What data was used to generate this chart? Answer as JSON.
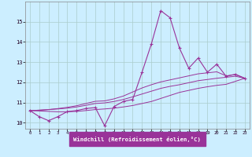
{
  "xlabel": "Windchill (Refroidissement éolien,°C)",
  "background_color": "#cceeff",
  "line_color": "#993399",
  "grid_color": "#aacccc",
  "x_data": [
    0,
    1,
    2,
    3,
    4,
    5,
    6,
    7,
    8,
    9,
    10,
    11,
    12,
    13,
    14,
    15,
    16,
    17,
    18,
    19,
    20,
    21,
    22,
    23
  ],
  "y_main": [
    10.6,
    10.3,
    10.1,
    10.3,
    10.55,
    10.6,
    10.7,
    10.75,
    9.85,
    10.8,
    11.05,
    11.15,
    12.5,
    13.9,
    15.55,
    15.2,
    13.7,
    12.7,
    13.2,
    12.5,
    12.9,
    12.3,
    12.4,
    12.2
  ],
  "y_line1": [
    10.6,
    10.58,
    10.56,
    10.54,
    10.54,
    10.56,
    10.6,
    10.65,
    10.68,
    10.72,
    10.78,
    10.85,
    10.95,
    11.05,
    11.2,
    11.35,
    11.5,
    11.6,
    11.7,
    11.78,
    11.85,
    11.9,
    12.05,
    12.2
  ],
  "y_line2": [
    10.6,
    10.62,
    10.65,
    10.68,
    10.72,
    10.78,
    10.86,
    10.95,
    10.98,
    11.05,
    11.15,
    11.28,
    11.42,
    11.56,
    11.7,
    11.8,
    11.88,
    11.98,
    12.08,
    12.14,
    12.2,
    12.25,
    12.3,
    12.2
  ],
  "y_line3": [
    10.6,
    10.62,
    10.65,
    10.7,
    10.76,
    10.84,
    10.95,
    11.06,
    11.08,
    11.18,
    11.32,
    11.52,
    11.72,
    11.88,
    12.02,
    12.12,
    12.22,
    12.32,
    12.42,
    12.47,
    12.52,
    12.32,
    12.38,
    12.2
  ],
  "ylim": [
    9.7,
    16.0
  ],
  "xlim": [
    -0.5,
    23.5
  ],
  "yticks": [
    10,
    11,
    12,
    13,
    14,
    15
  ],
  "xticks": [
    0,
    1,
    2,
    3,
    4,
    5,
    6,
    7,
    8,
    9,
    10,
    11,
    12,
    13,
    14,
    15,
    16,
    17,
    18,
    19,
    20,
    21,
    22,
    23
  ],
  "xlabel_bg": "#993399",
  "xlabel_fg": "#ffffff"
}
